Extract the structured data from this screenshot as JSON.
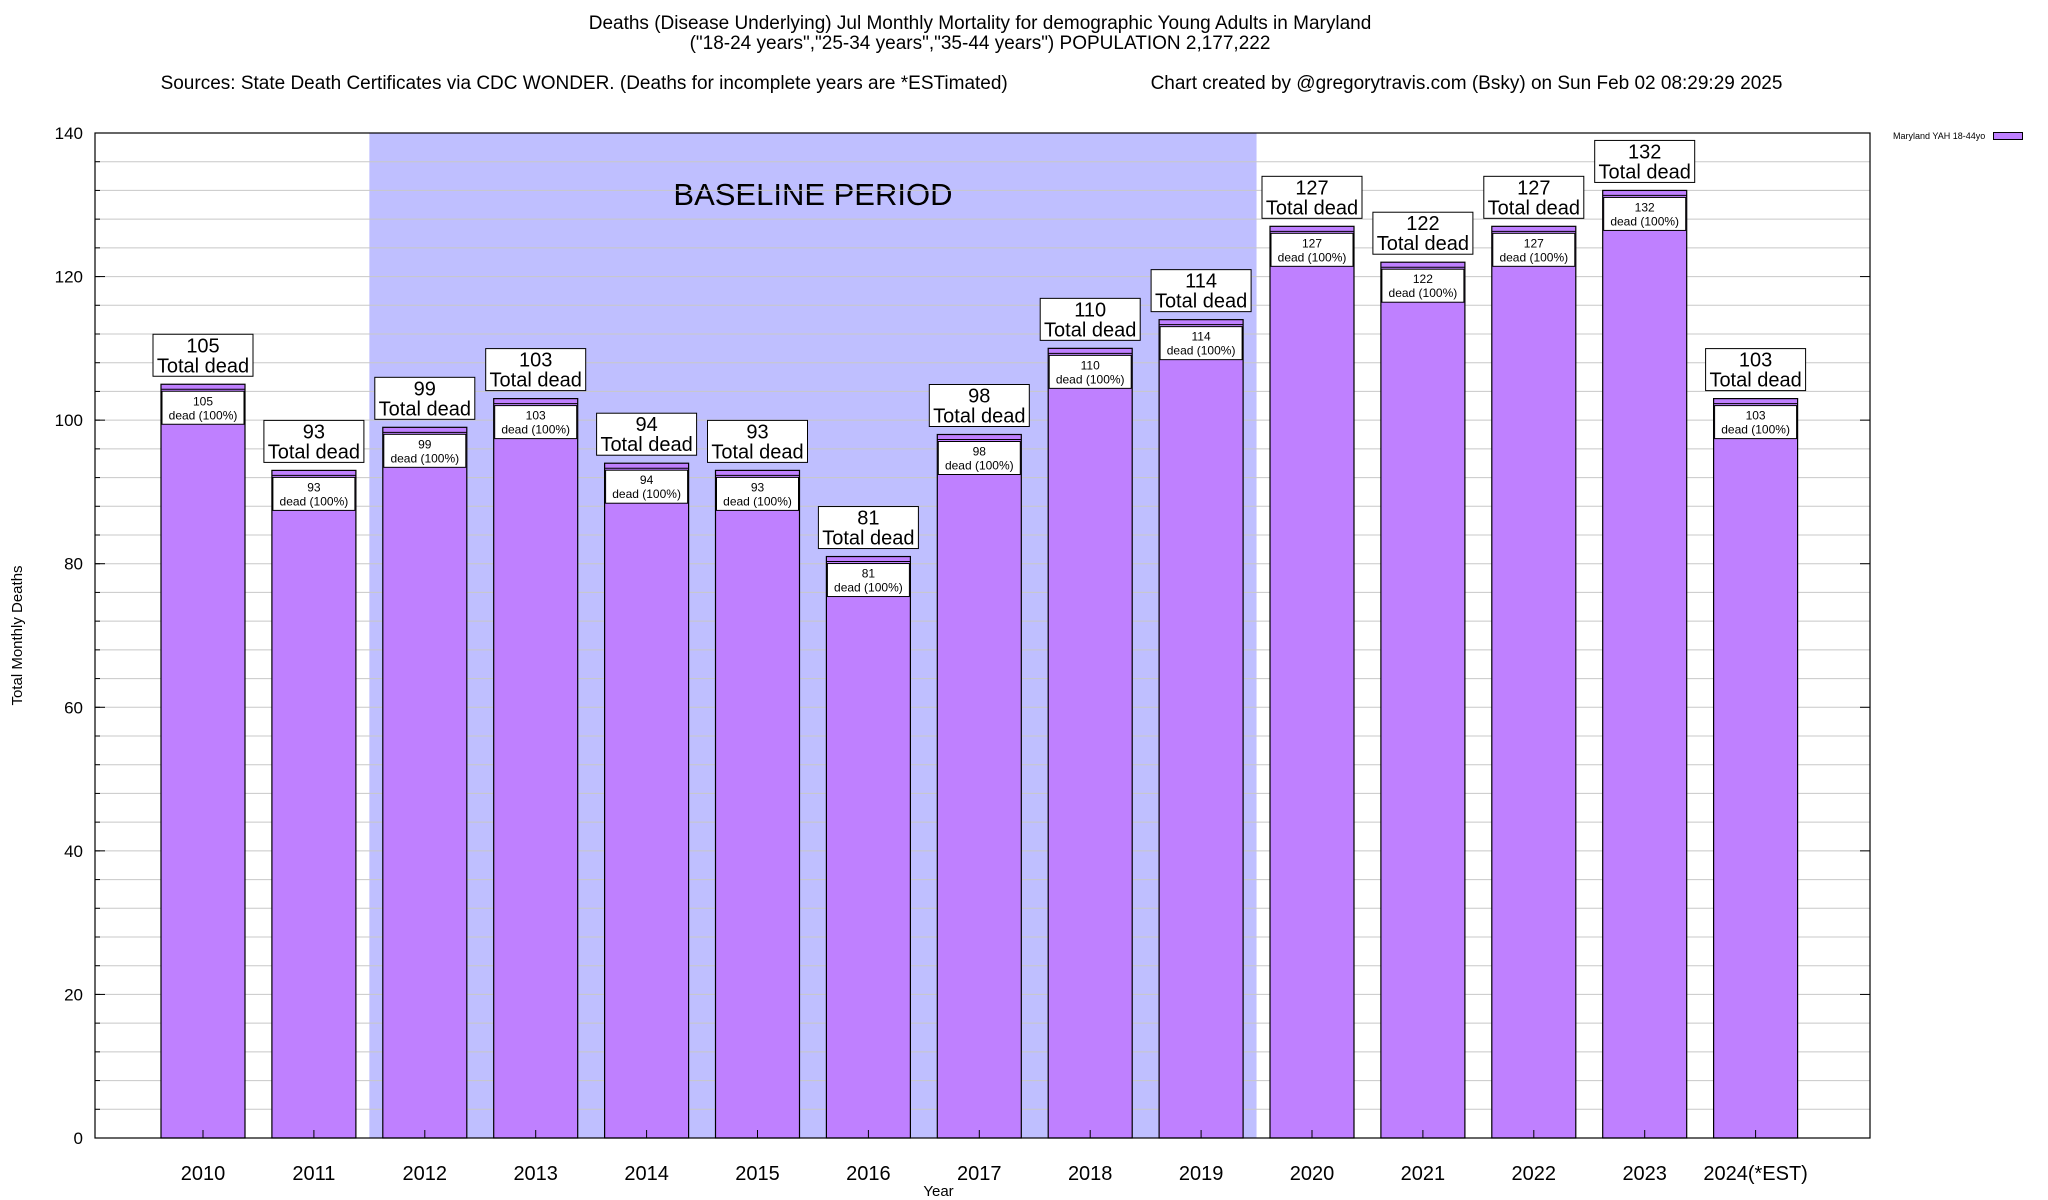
{
  "header": {
    "line1": "Deaths (Disease Underlying) Jul Monthly Mortality for demographic Young Adults in Maryland",
    "line2": "(\"18-24 years\",\"25-34 years\",\"35-44 years\") POPULATION 2,177,222",
    "line3_left": "Sources: State Death Certificates via CDC WONDER. (Deaths for incomplete years are *ESTimated)",
    "line3_right": "Chart created by @gregorytravis.com (Bsky) on Sun Feb 02 08:29:29 2025"
  },
  "legend": {
    "label": "Maryland YAH 18-44yo",
    "color": "#bf80ff"
  },
  "colors": {
    "bar": "#bf80ff",
    "baseline_band": "#bfbfff",
    "grid": "#c8c8c8"
  },
  "chart_data": {
    "type": "bar",
    "xlabel": "Year",
    "ylabel": "Total Monthly Deaths",
    "ylim": [
      0,
      140
    ],
    "yticks": [
      0,
      20,
      40,
      60,
      80,
      100,
      120,
      140
    ],
    "grid": true,
    "legend_position": "top-right",
    "categories": [
      "2010",
      "2011",
      "2012",
      "2013",
      "2014",
      "2015",
      "2016",
      "2017",
      "2018",
      "2019",
      "2020",
      "2021",
      "2022",
      "2023",
      "2024(*EST)"
    ],
    "series": [
      {
        "name": "Maryland YAH 18-44yo",
        "values": [
          105,
          93,
          99,
          103,
          94,
          93,
          81,
          98,
          110,
          114,
          127,
          122,
          127,
          132,
          103
        ]
      }
    ],
    "top_label_suffix": "Total dead",
    "inner_label_line1": [
      "105",
      "93",
      "99",
      "103",
      "94",
      "93",
      "81",
      "98",
      "110",
      "114",
      "127",
      "122",
      "127",
      "132",
      "103"
    ],
    "inner_label_line2": "dead (100%)",
    "baseline_period": {
      "label": "BASELINE PERIOD",
      "from_category": "2012",
      "to_category": "2019"
    }
  }
}
